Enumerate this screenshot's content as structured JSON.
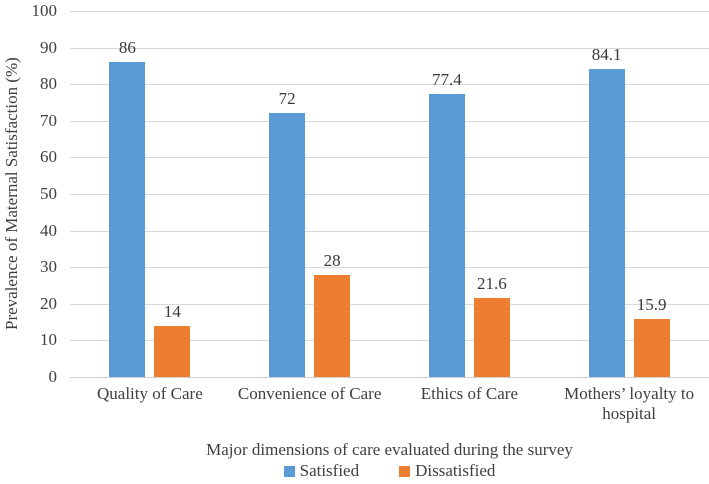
{
  "chart_data": {
    "type": "bar",
    "title": "",
    "xlabel": "Major dimensions of care evaluated during the survey",
    "ylabel": "Prevalence of Maternal Satisfaction  (%)",
    "categories": [
      "Quality of Care",
      "Convenience of Care",
      "Ethics of Care",
      "Mothers’ loyalty to hospital"
    ],
    "series": [
      {
        "name": "Satisfied",
        "color": "#5B9BD5",
        "values": [
          86,
          72,
          77.4,
          84.1
        ]
      },
      {
        "name": "Dissatisfied",
        "color": "#ED7D31",
        "values": [
          14,
          28,
          21.6,
          15.9
        ]
      }
    ],
    "value_labels": [
      [
        "86",
        "72",
        "77.4",
        "84.1"
      ],
      [
        "14",
        "28",
        "21.6",
        "15.9"
      ]
    ],
    "ylim": [
      0,
      100
    ],
    "yticks": [
      0,
      10,
      20,
      30,
      40,
      50,
      60,
      70,
      80,
      90,
      100
    ],
    "grid": true,
    "legend_position": "bottom"
  },
  "colors": {
    "bar_satisfied": "#5B9BD5",
    "bar_dissatisfied": "#ED7D31",
    "gridline": "#D9D9D9",
    "axis_line": "#CFCDCD",
    "text": "#3F3F3F",
    "background": "#FFFFFF"
  }
}
